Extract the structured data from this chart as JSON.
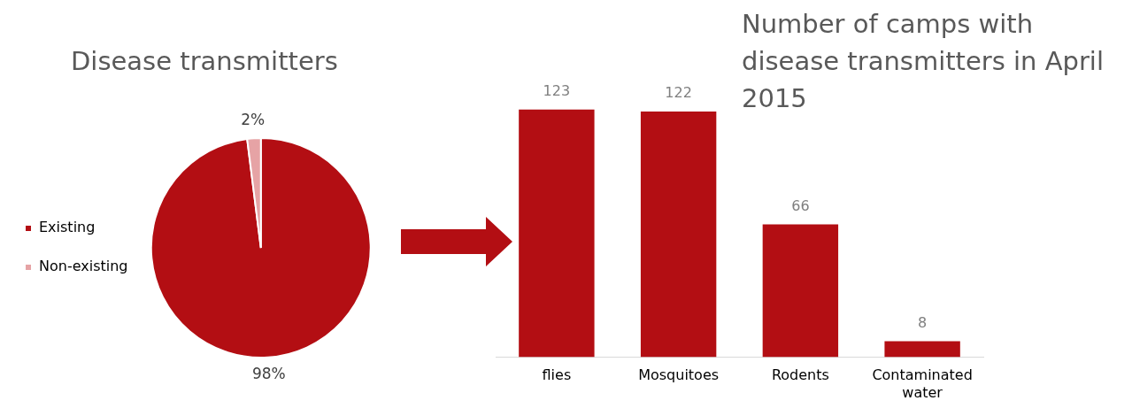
{
  "chart_data": [
    {
      "type": "pie",
      "title": "Disease transmitters",
      "categories": [
        "Existing",
        "Non-existing"
      ],
      "values": [
        98,
        2
      ],
      "colors": [
        "#b30e13",
        "#e6a3a5"
      ],
      "value_labels": [
        "98%",
        "2%"
      ],
      "legend": "left"
    },
    {
      "type": "bar",
      "title": "Number of camps with disease transmitters in April 2015",
      "categories": [
        "flies",
        "Mosquitoes",
        "Rodents",
        "Contaminated water"
      ],
      "values": [
        123,
        122,
        66,
        8
      ],
      "color": "#b30e13",
      "data_labels": true
    }
  ]
}
